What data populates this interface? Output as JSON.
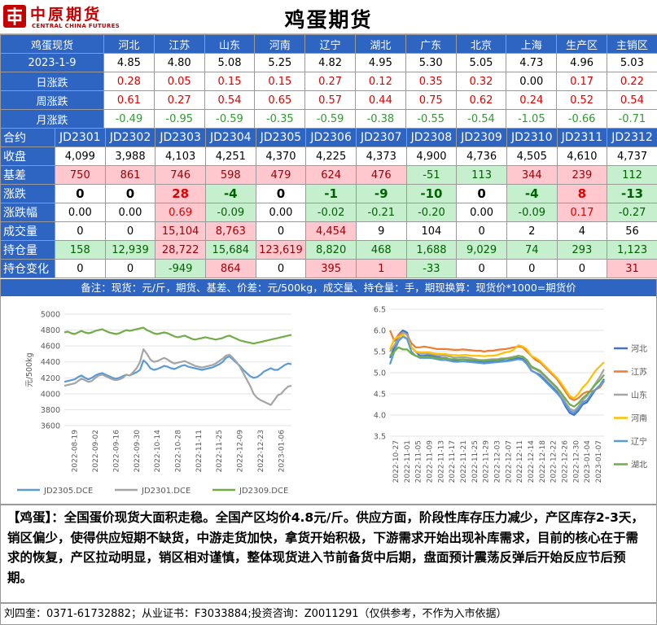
{
  "header": {
    "logo_cn": "中原期货",
    "logo_en": "CENTRAL CHINA FUTURES",
    "title": "鸡蛋期货"
  },
  "spot_table": {
    "label": "鸡蛋现货",
    "date": "2023-1-9",
    "regions": [
      "河北",
      "江苏",
      "山东",
      "河南",
      "辽宁",
      "湖北",
      "广东",
      "北京",
      "上海",
      "生产区",
      "主销区"
    ],
    "prices": [
      "4.85",
      "4.80",
      "5.08",
      "5.25",
      "4.82",
      "4.95",
      "5.30",
      "5.05",
      "4.73",
      "4.96",
      "5.03"
    ],
    "rows": [
      {
        "label": "日涨跌",
        "values": [
          "0.28",
          "0.05",
          "0.15",
          "0.15",
          "0.27",
          "0.12",
          "0.35",
          "0.32",
          "0.00",
          "0.17",
          "0.22"
        ]
      },
      {
        "label": "周涨跌",
        "values": [
          "0.61",
          "0.27",
          "0.54",
          "0.65",
          "0.57",
          "0.44",
          "0.75",
          "0.62",
          "0.24",
          "0.52",
          "0.54"
        ]
      },
      {
        "label": "月涨跌",
        "values": [
          "-0.49",
          "-0.95",
          "-0.59",
          "-0.35",
          "-0.59",
          "-0.38",
          "-0.55",
          "-0.54",
          "-1.05",
          "-0.66",
          "-0.71"
        ]
      }
    ]
  },
  "futures_table": {
    "contract_label": "合约",
    "contracts": [
      "JD2301",
      "JD2302",
      "JD2303",
      "JD2304",
      "JD2305",
      "JD2306",
      "JD2307",
      "JD2308",
      "JD2309",
      "JD2310",
      "JD2311",
      "JD2312"
    ],
    "rows": [
      {
        "label": "收盘",
        "values": [
          "4,099",
          "3,988",
          "4,103",
          "4,251",
          "4,370",
          "4,225",
          "4,373",
          "4,900",
          "4,736",
          "4,505",
          "4,610",
          "4,737"
        ]
      },
      {
        "label": "基差",
        "values": [
          "750",
          "861",
          "746",
          "598",
          "479",
          "624",
          "476",
          "-51",
          "113",
          "344",
          "239",
          "112"
        ]
      },
      {
        "label": "涨跌",
        "values": [
          "0",
          "0",
          "28",
          "-4",
          "0",
          "-1",
          "-9",
          "-10",
          "0",
          "-4",
          "8",
          "-13"
        ]
      },
      {
        "label": "涨跌幅",
        "values": [
          "0.00",
          "0.00",
          "0.69",
          "-0.09",
          "0.00",
          "-0.02",
          "-0.21",
          "-0.20",
          "0.00",
          "-0.09",
          "0.17",
          "-0.27"
        ]
      },
      {
        "label": "成交量",
        "values": [
          "0",
          "0",
          "15,104",
          "8,763",
          "0",
          "4,454",
          "9",
          "104",
          "0",
          "2",
          "4",
          "56"
        ]
      },
      {
        "label": "持仓量",
        "values": [
          "158",
          "12,939",
          "28,722",
          "15,684",
          "123,619",
          "8,820",
          "468",
          "1,688",
          "9,029",
          "74",
          "293",
          "1,123"
        ]
      },
      {
        "label": "持仓变化",
        "values": [
          "0",
          "0",
          "-949",
          "864",
          "0",
          "395",
          "1",
          "-33",
          "0",
          "0",
          "0",
          "31"
        ]
      }
    ]
  },
  "note": "备注：现货：元/斤，期货、基差、价差：元/500kg，成交量、持仓量：手，期现换算：现货价*1000=期货价",
  "chart_data": [
    {
      "type": "line",
      "ylabel": "元/500kg",
      "ylim": [
        3600,
        5000
      ],
      "yticks": [
        3600,
        3800,
        4000,
        4200,
        4400,
        4600,
        4800,
        5000
      ],
      "x_tick_labels": [
        "2022-08-19",
        "2022-09-02",
        "2022-09-16",
        "2022-09-30",
        "2022-10-14",
        "2022-10-28",
        "2022-11-11",
        "2022-11-25",
        "2022-12-09",
        "2022-12-23",
        "2023-01-06"
      ],
      "series": [
        {
          "name": "JD2305.DCE",
          "color": "#5b9bd5",
          "values": [
            4150,
            4160,
            4170,
            4180,
            4210,
            4230,
            4200,
            4180,
            4200,
            4230,
            4250,
            4260,
            4240,
            4220,
            4200,
            4190,
            4200,
            4220,
            4240,
            4230,
            4250,
            4270,
            4300,
            4420,
            4380,
            4320,
            4300,
            4310,
            4330,
            4350,
            4340,
            4320,
            4310,
            4330,
            4350,
            4360,
            4340,
            4330,
            4320,
            4310,
            4300,
            4310,
            4320,
            4330,
            4350,
            4370,
            4400,
            4450,
            4470,
            4430,
            4390,
            4350,
            4300,
            4260,
            4220,
            4200,
            4210,
            4240,
            4280,
            4300,
            4320,
            4300,
            4300,
            4330,
            4360,
            4380,
            4370
          ]
        },
        {
          "name": "JD2301.DCE",
          "color": "#a5a5a5",
          "values": [
            4100,
            4110,
            4120,
            4130,
            4160,
            4190,
            4170,
            4150,
            4160,
            4200,
            4230,
            4240,
            4220,
            4200,
            4180,
            4170,
            4180,
            4200,
            4240,
            4230,
            4270,
            4320,
            4400,
            4560,
            4500,
            4430,
            4400,
            4410,
            4430,
            4450,
            4430,
            4400,
            4380,
            4390,
            4400,
            4410,
            4390,
            4370,
            4350,
            4340,
            4330,
            4340,
            4350,
            4360,
            4380,
            4410,
            4440,
            4480,
            4490,
            4450,
            4400,
            4340,
            4260,
            4180,
            4100,
            4000,
            3950,
            3920,
            3900,
            3880,
            3860,
            3920,
            3980,
            4000,
            4050,
            4090,
            4100
          ]
        },
        {
          "name": "JD2309.DCE",
          "color": "#70ad47",
          "values": [
            4770,
            4780,
            4760,
            4750,
            4770,
            4790,
            4770,
            4760,
            4770,
            4790,
            4800,
            4810,
            4790,
            4770,
            4760,
            4750,
            4760,
            4780,
            4800,
            4790,
            4800,
            4810,
            4820,
            4830,
            4800,
            4780,
            4760,
            4750,
            4760,
            4770,
            4760,
            4740,
            4720,
            4710,
            4720,
            4730,
            4710,
            4690,
            4680,
            4690,
            4700,
            4710,
            4700,
            4690,
            4680,
            4690,
            4700,
            4720,
            4730,
            4710,
            4690,
            4670,
            4660,
            4650,
            4640,
            4630,
            4640,
            4650,
            4660,
            4670,
            4680,
            4690,
            4700,
            4710,
            4720,
            4730,
            4740
          ]
        }
      ]
    },
    {
      "type": "line",
      "ylim": [
        3.5,
        6.5
      ],
      "yticks": [
        3.5,
        4.0,
        4.5,
        5.0,
        5.5,
        6.0,
        6.5
      ],
      "x_tick_labels": [
        "2022-10-27",
        "2022-11-01",
        "2022-11-05",
        "2022-11-09",
        "2022-11-13",
        "2022-11-17",
        "2022-11-21",
        "2022-11-25",
        "2022-11-29",
        "2022-12-03",
        "2022-12-07",
        "2022-12-11",
        "2022-12-14",
        "2022-12-18",
        "2022-12-22",
        "2022-12-26",
        "2022-12-30",
        "2023-01-04",
        "2023-01-07"
      ],
      "series": [
        {
          "name": "河北",
          "color": "#4472c4",
          "values": [
            5.35,
            5.6,
            5.9,
            6.0,
            5.95,
            5.6,
            5.5,
            5.4,
            5.4,
            5.42,
            5.4,
            5.38,
            5.35,
            5.35,
            5.32,
            5.3,
            5.3,
            5.32,
            5.3,
            5.28,
            5.26,
            5.25,
            5.24,
            5.25,
            5.26,
            5.26,
            5.28,
            5.28,
            5.3,
            5.32,
            5.35,
            5.33,
            5.25,
            5.05,
            5.0,
            4.95,
            4.85,
            4.75,
            4.65,
            4.55,
            4.4,
            4.2,
            4.05,
            4.0,
            4.1,
            4.25,
            4.3,
            4.45,
            4.6,
            4.7,
            4.85
          ]
        },
        {
          "name": "江苏",
          "color": "#ed7d31",
          "values": [
            6.0,
            5.75,
            5.9,
            5.95,
            5.9,
            5.7,
            5.6,
            5.6,
            5.62,
            5.6,
            5.58,
            5.56,
            5.56,
            5.56,
            5.55,
            5.54,
            5.54,
            5.55,
            5.54,
            5.53,
            5.52,
            5.52,
            5.5,
            5.52,
            5.52,
            5.54,
            5.55,
            5.56,
            5.58,
            5.6,
            5.62,
            5.6,
            5.5,
            5.4,
            5.3,
            5.25,
            5.15,
            5.05,
            4.95,
            4.85,
            4.7,
            4.55,
            4.4,
            4.35,
            4.4,
            4.5,
            4.55,
            4.55,
            4.6,
            4.65,
            4.8
          ]
        },
        {
          "name": "山东",
          "color": "#a5a5a5",
          "values": [
            5.5,
            5.65,
            5.8,
            5.95,
            5.9,
            5.6,
            5.5,
            5.45,
            5.45,
            5.45,
            5.43,
            5.41,
            5.4,
            5.4,
            5.38,
            5.36,
            5.36,
            5.37,
            5.36,
            5.34,
            5.32,
            5.3,
            5.3,
            5.31,
            5.32,
            5.32,
            5.34,
            5.34,
            5.36,
            5.38,
            5.4,
            5.38,
            5.28,
            5.12,
            5.08,
            5.02,
            4.92,
            4.82,
            4.72,
            4.62,
            4.48,
            4.3,
            4.15,
            4.1,
            4.2,
            4.35,
            4.45,
            4.6,
            4.75,
            4.9,
            5.08
          ]
        },
        {
          "name": "河南",
          "color": "#ffc000",
          "values": [
            5.55,
            5.8,
            5.85,
            5.9,
            5.8,
            5.6,
            5.5,
            5.48,
            5.48,
            5.48,
            5.46,
            5.45,
            5.44,
            5.44,
            5.42,
            5.42,
            5.41,
            5.42,
            5.42,
            5.4,
            5.4,
            5.4,
            5.39,
            5.4,
            5.4,
            5.42,
            5.45,
            5.48,
            5.5,
            5.55,
            5.65,
            5.62,
            5.55,
            5.4,
            5.35,
            5.28,
            5.18,
            5.08,
            4.98,
            4.88,
            4.75,
            4.6,
            4.45,
            4.4,
            4.5,
            4.65,
            4.75,
            4.9,
            5.05,
            5.15,
            5.25
          ]
        },
        {
          "name": "辽宁",
          "color": "#5b9bd5",
          "values": [
            5.2,
            5.5,
            5.75,
            5.85,
            5.8,
            5.5,
            5.4,
            5.35,
            5.35,
            5.35,
            5.34,
            5.32,
            5.3,
            5.3,
            5.28,
            5.26,
            5.26,
            5.27,
            5.26,
            5.25,
            5.24,
            5.23,
            5.22,
            5.23,
            5.24,
            5.25,
            5.26,
            5.27,
            5.28,
            5.3,
            5.32,
            5.3,
            5.2,
            5.05,
            5.0,
            4.92,
            4.82,
            4.72,
            4.62,
            4.52,
            4.4,
            4.25,
            4.1,
            4.05,
            4.15,
            4.3,
            4.35,
            4.5,
            4.6,
            4.7,
            4.82
          ]
        },
        {
          "name": "湖北",
          "color": "#70ad47",
          "values": [
            5.4,
            5.5,
            5.6,
            5.55,
            5.55,
            5.45,
            5.4,
            5.38,
            5.38,
            5.38,
            5.36,
            5.35,
            5.34,
            5.34,
            5.32,
            5.32,
            5.31,
            5.32,
            5.31,
            5.3,
            5.3,
            5.29,
            5.28,
            5.29,
            5.3,
            5.3,
            5.32,
            5.33,
            5.34,
            5.36,
            5.4,
            5.38,
            5.3,
            5.15,
            5.1,
            5.05,
            4.95,
            4.85,
            4.75,
            4.65,
            4.52,
            4.38,
            4.25,
            4.2,
            4.28,
            4.4,
            4.48,
            4.6,
            4.72,
            4.82,
            4.95
          ]
        }
      ]
    }
  ],
  "commentary": "【鸡蛋】：全国蛋价现货大面积走稳。全国产区均价4.8元/斤。供应方面，阶段性库存压力减少，产区库存2-3天，销区偏少，使得供应短期不缺货，中游走货加快，拿货开始积极，下游需求开始出现补库需求，目前的核心在于需求的恢复，产区拉动明显，销区相对谨慎，整体现货进入节前备货中后期，盘面预计震荡反弹后开始反应节后预期。",
  "footer": "刘四奎：0371-61732882；从业证书：F3033884;投资咨询：Z0011291（仅供参考，不作为入市依据）"
}
